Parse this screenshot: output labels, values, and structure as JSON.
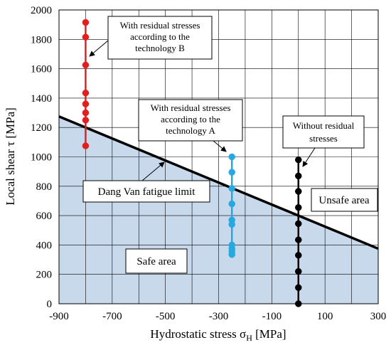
{
  "chart_data": {
    "type": "scatter",
    "xlabel": "Hydrostatic stress σ",
    "xlabel_sub": "H",
    "xlabel_unit": " [MPa]",
    "ylabel": "Local shear τ [MPa]",
    "xlim": [
      -900,
      300
    ],
    "ylim": [
      0,
      2000
    ],
    "xticks": [
      -900,
      -700,
      -500,
      -300,
      -100,
      100,
      300
    ],
    "yticks": [
      0,
      200,
      400,
      600,
      800,
      1000,
      1200,
      1400,
      1600,
      1800,
      2000
    ],
    "grid": true,
    "limit_line": {
      "name": "Dang Van fatigue limit",
      "x": [
        -900,
        300
      ],
      "y": [
        1275,
        375
      ]
    },
    "series": [
      {
        "name": "With residual stresses according to the technology B",
        "color": "#e02020",
        "x": -800,
        "y": [
          1075,
          1250,
          1300,
          1360,
          1435,
          1625,
          1815,
          1915
        ]
      },
      {
        "name": "With residual stresses according to the technology A",
        "color": "#29a8e0",
        "x": -250,
        "y": [
          335,
          355,
          375,
          400,
          540,
          570,
          680,
          785,
          895,
          1000
        ]
      },
      {
        "name": "Without residual stresses",
        "color": "#000000",
        "x": 0,
        "y": [
          0,
          110,
          220,
          330,
          435,
          545,
          655,
          765,
          870,
          980
        ]
      }
    ],
    "annotations": {
      "tech_b": [
        "With residual stresses",
        "according to the",
        "technology B"
      ],
      "tech_a": [
        "With residual stresses",
        "according to the",
        "technology A"
      ],
      "without": [
        "Without residual",
        "stresses"
      ],
      "dang_van": "Dang Van fatigue limit",
      "unsafe": "Unsafe area",
      "safe": "Safe area"
    },
    "colors": {
      "safe_fill": "#c9d9ec",
      "limit_line": "#000000"
    }
  }
}
